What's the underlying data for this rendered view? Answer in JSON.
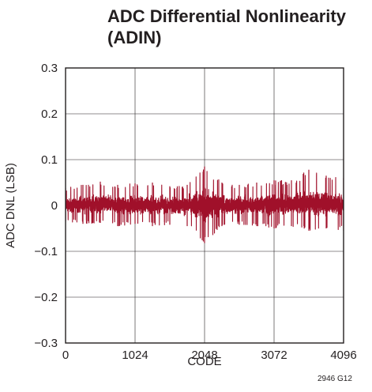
{
  "chart_data": {
    "type": "line",
    "title_lines": [
      "ADC Differential Nonlinearity",
      "(ADIN)"
    ],
    "xlabel": "CODE",
    "ylabel": "ADC DNL (LSB)",
    "xlim": [
      0,
      4096
    ],
    "ylim": [
      -0.3,
      0.3
    ],
    "x_ticks": [
      0,
      1024,
      2048,
      3072,
      4096
    ],
    "x_tick_labels": [
      "0",
      "1024",
      "2048",
      "3072",
      "4096"
    ],
    "y_ticks": [
      0.3,
      0.2,
      0.1,
      0,
      -0.1,
      -0.2,
      -0.3
    ],
    "y_tick_labels": [
      "0.3",
      "0.2",
      "0.1",
      "0",
      "−0.1",
      "−0.2",
      "−0.3"
    ],
    "grid": true,
    "series": [
      {
        "color": "#a0102a",
        "x": [
          0,
          256,
          512,
          768,
          1024,
          1280,
          1536,
          1792,
          2048,
          2304,
          2560,
          2816,
          3072,
          3328,
          3584,
          3840,
          4096
        ],
        "y_max": [
          0.038,
          0.045,
          0.052,
          0.045,
          0.048,
          0.05,
          0.042,
          0.045,
          0.085,
          0.05,
          0.045,
          0.05,
          0.055,
          0.055,
          0.078,
          0.065,
          0.06
        ],
        "y_min": [
          -0.035,
          -0.04,
          -0.038,
          -0.045,
          -0.04,
          -0.045,
          -0.042,
          -0.045,
          -0.082,
          -0.045,
          -0.042,
          -0.045,
          -0.05,
          -0.045,
          -0.055,
          -0.05,
          -0.055
        ]
      }
    ]
  },
  "figure_id": "2946 G12"
}
